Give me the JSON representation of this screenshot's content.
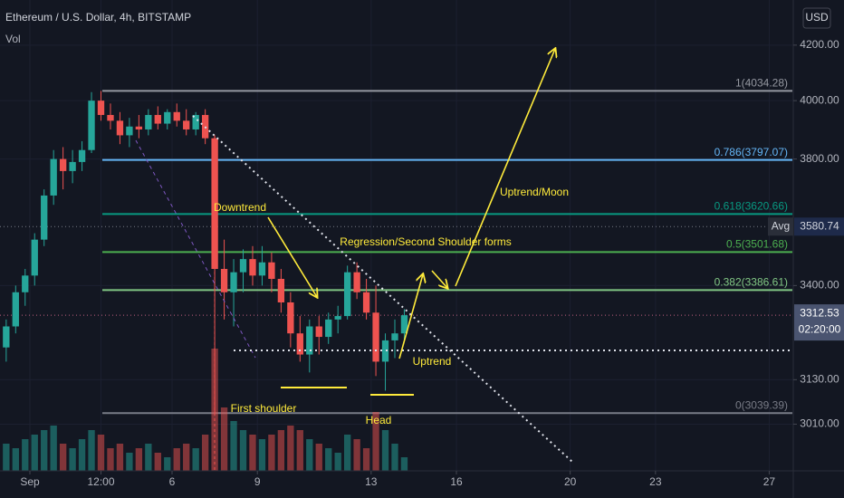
{
  "header": {
    "symbol": "Ethereum / U.S. Dollar, 4h, BITSTAMP",
    "indicator": "Vol",
    "currency": "USD"
  },
  "chart_data": {
    "type": "candlestick",
    "log_scale": true,
    "up_color": "#26a69a",
    "down_color": "#ef5350",
    "x": [
      4,
      12,
      20,
      28,
      36,
      44,
      52,
      60,
      68,
      76,
      84,
      92,
      100,
      108,
      116,
      124,
      132,
      140,
      148,
      156,
      164,
      172,
      180,
      188,
      196,
      204,
      212,
      220,
      228,
      236,
      244,
      252,
      260,
      268,
      276,
      284,
      292,
      300,
      308,
      316,
      324,
      332,
      340
    ],
    "open": [
      3220,
      3280,
      3380,
      3430,
      3540,
      3680,
      3800,
      3760,
      3790,
      3830,
      4000,
      3950,
      3930,
      3880,
      3910,
      3900,
      3950,
      3920,
      3960,
      3930,
      3900,
      3950,
      3870,
      3450,
      3380,
      3440,
      3480,
      3430,
      3470,
      3420,
      3350,
      3260,
      3200,
      3280,
      3250,
      3300,
      3310,
      3440,
      3380,
      3320,
      3180,
      3240,
      3260
    ],
    "high": [
      3300,
      3400,
      3450,
      3560,
      3700,
      3830,
      3840,
      3830,
      3860,
      4030,
      4034.28,
      3990,
      3960,
      3940,
      3950,
      3970,
      3980,
      3970,
      3990,
      3970,
      3960,
      3970,
      3880,
      3540,
      3480,
      3510,
      3520,
      3520,
      3500,
      3450,
      3380,
      3310,
      3300,
      3310,
      3320,
      3340,
      3460,
      3470,
      3420,
      3400,
      3260,
      3300,
      3330
    ],
    "low": [
      3180,
      3260,
      3340,
      3400,
      3520,
      3650,
      3700,
      3720,
      3760,
      3820,
      3930,
      3900,
      3850,
      3840,
      3870,
      3880,
      3900,
      3900,
      3910,
      3880,
      3880,
      3850,
      3039.39,
      3300,
      3280,
      3380,
      3400,
      3400,
      3380,
      3320,
      3220,
      3180,
      3150,
      3200,
      3230,
      3260,
      3300,
      3360,
      3300,
      3140,
      3100,
      3190,
      3240
    ],
    "close": [
      3280,
      3380,
      3430,
      3540,
      3680,
      3800,
      3760,
      3790,
      3830,
      4000,
      3950,
      3930,
      3880,
      3910,
      3900,
      3950,
      3920,
      3960,
      3930,
      3900,
      3950,
      3870,
      3450,
      3380,
      3440,
      3480,
      3430,
      3470,
      3420,
      3350,
      3260,
      3200,
      3280,
      3250,
      3300,
      3310,
      3440,
      3380,
      3320,
      3180,
      3240,
      3260,
      3312.53
    ],
    "volume": [
      30,
      25,
      35,
      40,
      45,
      50,
      30,
      25,
      35,
      45,
      40,
      25,
      30,
      20,
      25,
      30,
      20,
      15,
      25,
      30,
      25,
      40,
      135,
      70,
      55,
      45,
      40,
      35,
      40,
      45,
      50,
      45,
      35,
      30,
      25,
      20,
      40,
      35,
      25,
      65,
      45,
      30,
      15
    ],
    "volume_lim": [
      0,
      140
    ],
    "xlim": [
      0,
      667
    ],
    "ylim": [
      2889,
      4370
    ],
    "xticks": [
      {
        "value": 24,
        "label": "Sep"
      },
      {
        "value": 84,
        "label": "12:00"
      },
      144,
      216,
      312,
      384,
      480,
      552,
      648
    ],
    "xtick_labels": [
      null,
      null,
      "6",
      "9",
      "13",
      "16",
      "20",
      "23",
      "27"
    ],
    "yticks": [
      {
        "value": 3010,
        "label": "3010.00"
      },
      {
        "value": 3130,
        "label": "3130.00"
      },
      {
        "value": 3400,
        "label": "3400.00"
      },
      {
        "value": 3800,
        "label": "3800.00"
      },
      {
        "value": 4000,
        "label": "4000.00"
      },
      {
        "value": 4200,
        "label": "4200.00"
      }
    ],
    "grid": true,
    "levels": [
      {
        "value": 4034.28,
        "label": "1(4034.28)",
        "color": "#9598a1"
      },
      {
        "value": 3797.07,
        "label": "0.786(3797.07)",
        "color": "#64b5f6"
      },
      {
        "value": 3620.66,
        "label": "0.618(3620.66)",
        "color": "#089981"
      },
      {
        "value": 3501.68,
        "label": "0.5(3501.68)",
        "color": "#4caf50"
      },
      {
        "value": 3386.61,
        "label": "0.382(3386.61)",
        "color": "#81c784"
      },
      {
        "value": 3039.39,
        "label": "0(3039.39)",
        "color": "#787b86"
      }
    ],
    "avg": {
      "name": "Avg",
      "value": 3580.74,
      "label": "3580.74"
    },
    "last": {
      "value": 3312.53,
      "label": "3312.53",
      "countdown": "02:20:00"
    },
    "annotations": [
      "Downtrend",
      "Regression/Second Shoulder forms",
      "Uptrend/Moon",
      "Uptrend",
      "First shoulder",
      "Head"
    ]
  }
}
